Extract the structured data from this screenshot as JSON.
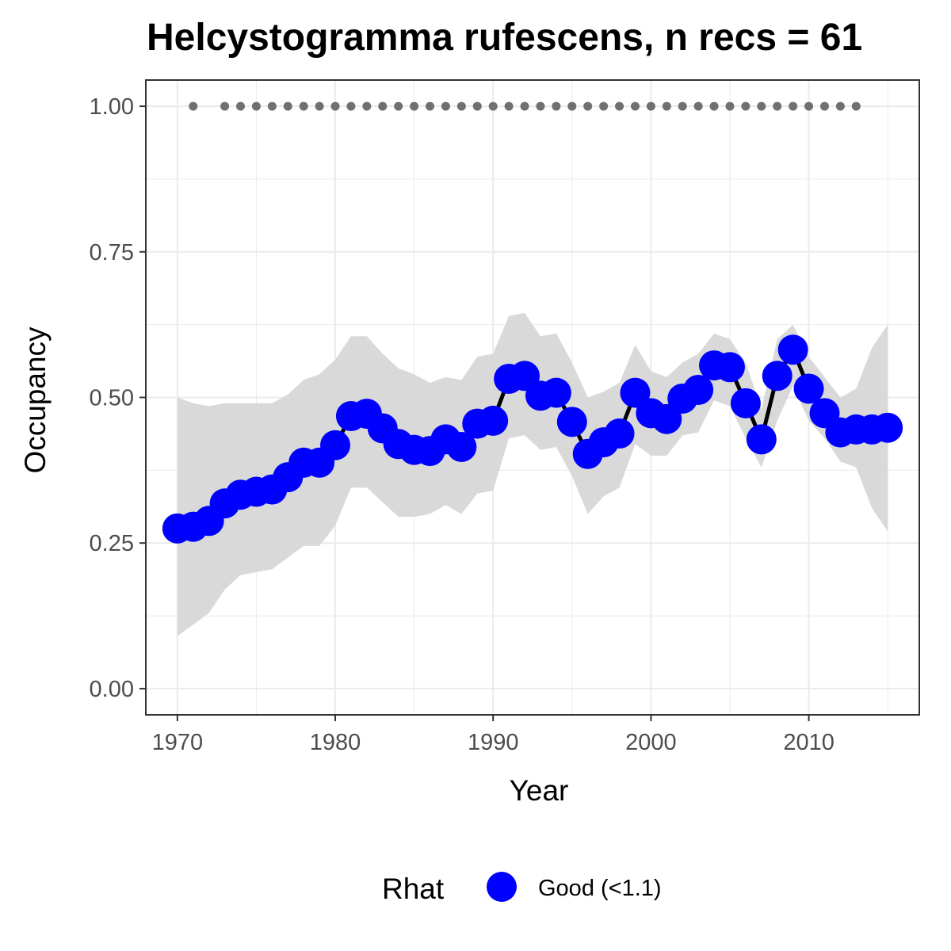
{
  "chart_data": {
    "type": "line",
    "title": "Helcystogramma rufescens, n recs = 61",
    "xlabel": "Year",
    "ylabel": "Occupancy",
    "xlim": [
      1968,
      2017
    ],
    "ylim": [
      -0.045,
      1.045
    ],
    "x_ticks": [
      1970,
      1980,
      1990,
      2000,
      2010
    ],
    "x_tick_labels": [
      "1970",
      "1980",
      "1990",
      "2000",
      "2010"
    ],
    "y_ticks": [
      0,
      0.25,
      0.5,
      0.75,
      1.0
    ],
    "y_tick_labels": [
      "0.00",
      "0.25",
      "0.50",
      "0.75",
      "1.00"
    ],
    "grid": true,
    "legend": {
      "title": "Rhat",
      "position": "bottom",
      "entries": [
        {
          "label": "Good (<1.1)",
          "color": "#0000ff"
        }
      ]
    },
    "colors": {
      "points": "#0000ff",
      "line": "#000000",
      "ribbon": "#d9d9d9",
      "record_dots": "#707070",
      "grid": "#ebebeb",
      "panel_border": "#333333"
    },
    "series": [
      {
        "name": "Good (<1.1)",
        "x": [
          1970,
          1971,
          1972,
          1973,
          1974,
          1975,
          1976,
          1977,
          1978,
          1979,
          1980,
          1981,
          1982,
          1983,
          1984,
          1985,
          1986,
          1987,
          1988,
          1989,
          1990,
          1991,
          1992,
          1993,
          1994,
          1995,
          1996,
          1997,
          1998,
          1999,
          2000,
          2001,
          2002,
          2003,
          2004,
          2005,
          2006,
          2007,
          2008,
          2009,
          2010,
          2011,
          2012,
          2013,
          2014,
          2015
        ],
        "values": [
          0.275,
          0.278,
          0.288,
          0.318,
          0.333,
          0.338,
          0.342,
          0.363,
          0.388,
          0.388,
          0.418,
          0.468,
          0.472,
          0.447,
          0.42,
          0.41,
          0.408,
          0.428,
          0.415,
          0.455,
          0.46,
          0.532,
          0.537,
          0.503,
          0.508,
          0.458,
          0.403,
          0.423,
          0.438,
          0.508,
          0.473,
          0.463,
          0.498,
          0.513,
          0.555,
          0.552,
          0.49,
          0.428,
          0.537,
          0.582,
          0.515,
          0.473,
          0.44,
          0.445,
          0.445,
          0.448
        ],
        "lower": [
          0.09,
          0.11,
          0.13,
          0.17,
          0.195,
          0.2,
          0.205,
          0.225,
          0.245,
          0.245,
          0.28,
          0.345,
          0.345,
          0.32,
          0.295,
          0.295,
          0.3,
          0.315,
          0.3,
          0.335,
          0.34,
          0.43,
          0.435,
          0.41,
          0.415,
          0.365,
          0.3,
          0.33,
          0.345,
          0.42,
          0.4,
          0.4,
          0.435,
          0.44,
          0.495,
          0.485,
          0.43,
          0.38,
          0.46,
          0.52,
          0.46,
          0.43,
          0.39,
          0.38,
          0.31,
          0.27
        ],
        "upper": [
          0.5,
          0.49,
          0.485,
          0.49,
          0.49,
          0.49,
          0.49,
          0.505,
          0.53,
          0.54,
          0.565,
          0.605,
          0.605,
          0.575,
          0.55,
          0.54,
          0.525,
          0.535,
          0.53,
          0.57,
          0.575,
          0.64,
          0.645,
          0.605,
          0.61,
          0.56,
          0.5,
          0.51,
          0.525,
          0.59,
          0.545,
          0.535,
          0.56,
          0.575,
          0.61,
          0.6,
          0.56,
          0.48,
          0.6,
          0.625,
          0.57,
          0.535,
          0.5,
          0.515,
          0.585,
          0.625
        ]
      }
    ],
    "records": {
      "y": 1.0,
      "x": [
        1971,
        1973,
        1974,
        1975,
        1976,
        1977,
        1978,
        1979,
        1980,
        1981,
        1982,
        1983,
        1984,
        1985,
        1986,
        1987,
        1988,
        1989,
        1990,
        1991,
        1992,
        1993,
        1994,
        1995,
        1996,
        1997,
        1998,
        1999,
        2000,
        2001,
        2002,
        2003,
        2004,
        2005,
        2006,
        2007,
        2008,
        2009,
        2010,
        2011,
        2012,
        2013
      ]
    }
  }
}
